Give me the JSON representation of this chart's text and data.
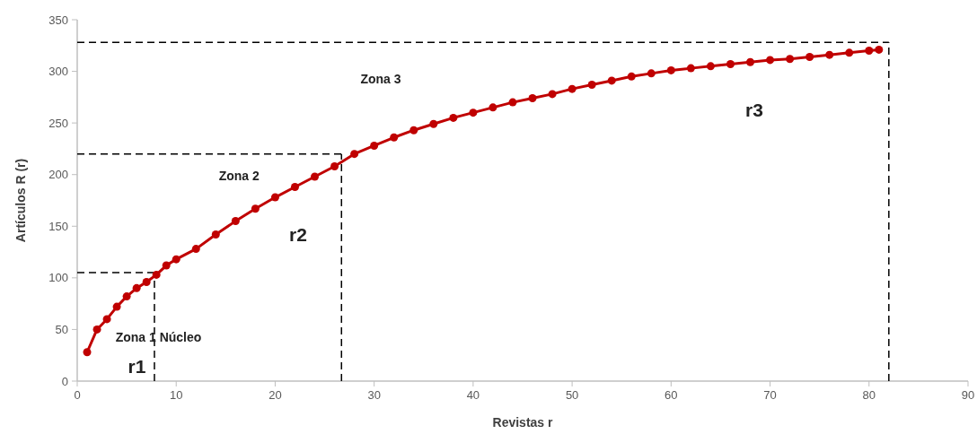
{
  "chart_data": {
    "type": "line",
    "xlabel": "Revistas r",
    "ylabel": "Artículos R (r)",
    "xlim": [
      0,
      90
    ],
    "xticks": [
      0,
      10,
      20,
      30,
      40,
      50,
      60,
      70,
      80,
      90
    ],
    "ylim": [
      0,
      350
    ],
    "yticks": [
      0,
      50,
      100,
      150,
      200,
      250,
      300,
      350
    ],
    "grid": false,
    "marker": "circle",
    "line_style": "solid",
    "series": [
      {
        "color": "#c00000",
        "x": [
          1,
          2,
          3,
          4,
          5,
          6,
          7,
          8,
          9,
          10,
          12,
          14,
          16,
          18,
          20,
          22,
          24,
          26,
          28,
          30,
          32,
          34,
          36,
          38,
          40,
          42,
          44,
          46,
          48,
          50,
          52,
          54,
          56,
          58,
          60,
          62,
          64,
          66,
          68,
          70,
          72,
          74,
          76,
          78,
          80,
          81
        ],
        "values": [
          28,
          50,
          60,
          72,
          82,
          90,
          96,
          103,
          112,
          118,
          128,
          142,
          155,
          167,
          178,
          188,
          198,
          208,
          220,
          228,
          236,
          243,
          249,
          255,
          260,
          265,
          270,
          274,
          278,
          283,
          287,
          291,
          295,
          298,
          301,
          303,
          305,
          307,
          309,
          311,
          312,
          314,
          316,
          318,
          320,
          321
        ]
      }
    ],
    "ref_lines": [
      {
        "axis": "x",
        "value": 7.8,
        "line_style": "dashed",
        "color": "#000000"
      },
      {
        "axis": "y",
        "value": 105,
        "line_style": "dashed",
        "color": "#000000"
      },
      {
        "axis": "x",
        "value": 26.7,
        "line_style": "dashed",
        "color": "#000000"
      },
      {
        "axis": "y",
        "value": 220,
        "line_style": "dashed",
        "color": "#000000"
      },
      {
        "axis": "x",
        "value": 82,
        "line_style": "dashed",
        "color": "#000000"
      },
      {
        "axis": "y",
        "value": 328,
        "line_style": "dashed",
        "color": "#000000"
      }
    ],
    "annotations": [
      "Zona 1 Núcleo",
      "Zona 2",
      "Zona 3",
      "r1",
      "r2",
      "r3"
    ]
  }
}
